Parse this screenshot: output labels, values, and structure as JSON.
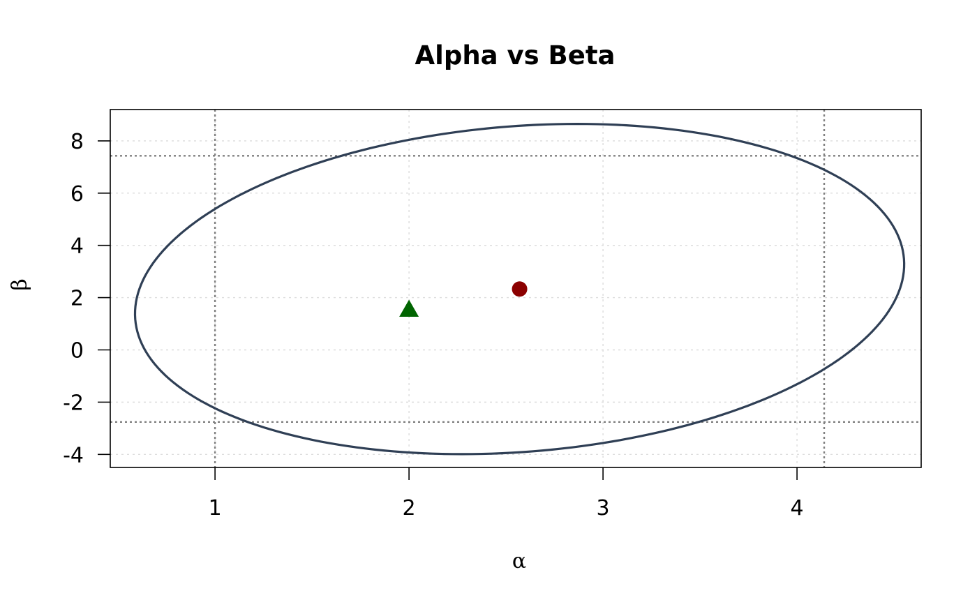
{
  "chart_data": {
    "type": "scatter",
    "title": "Alpha vs Beta",
    "xlabel": "α",
    "ylabel": "β",
    "xlim": [
      0.46,
      4.64
    ],
    "ylim": [
      -4.5,
      9.2
    ],
    "x_ticks": [
      1,
      2,
      3,
      4
    ],
    "y_ticks": [
      -4,
      -2,
      0,
      2,
      4,
      6,
      8
    ],
    "grid": true,
    "grid_style": "dotted light gray",
    "colors": {
      "ellipse": "#2f3f55",
      "point_circle": "#8b0000",
      "point_triangle": "#006400",
      "reference_lines": "#808080",
      "grid": "#dcdcdc"
    },
    "ellipse": {
      "center": [
        2.57,
        2.33
      ],
      "semi_axis_x": 1.96,
      "semi_axis_y": 6.32,
      "tilt_x_per_y": 0.047
    },
    "points": [
      {
        "x": 2.57,
        "y": 2.33,
        "marker": "circle"
      },
      {
        "x": 2.0,
        "y": 1.55,
        "marker": "triangle"
      }
    ],
    "vlines": [
      1.0,
      4.14
    ],
    "hlines": [
      7.43,
      -2.76
    ]
  }
}
